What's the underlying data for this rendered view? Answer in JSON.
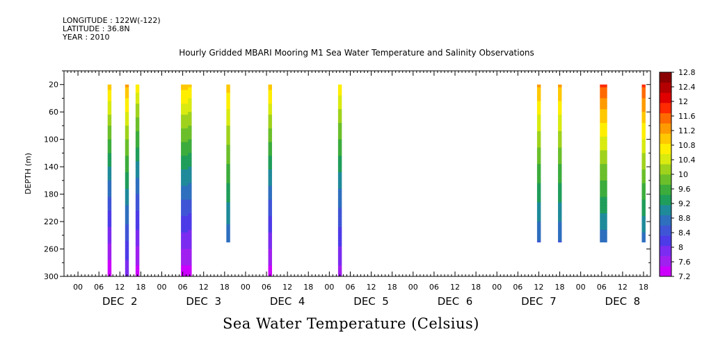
{
  "header": {
    "longitude": "LONGITUDE : 122W(-122)",
    "latitude": "LATITUDE : 36.8N",
    "year": "YEAR : 2010"
  },
  "chart_data": {
    "type": "heatmap",
    "title": "Hourly Gridded MBARI Mooring M1 Sea Water Temperature and Salinity Observations",
    "xlabel": "",
    "ylabel": "DEPTH (m)",
    "colorbar_label": "Sea Water Temperature (Celsius)",
    "x_start": "2010-12-01T20:00",
    "x_end": "2010-12-08T20:00",
    "x_hour_ticks": [
      "00",
      "06",
      "12",
      "18",
      "00",
      "06",
      "12",
      "18",
      "00",
      "06",
      "12",
      "18",
      "00",
      "06",
      "12",
      "18",
      "00",
      "06",
      "12",
      "18",
      "00",
      "06",
      "12",
      "18",
      "00",
      "06",
      "12",
      "18",
      "00",
      "06",
      "12",
      "18"
    ],
    "x_day_labels": [
      "DEC  2",
      "DEC  3",
      "DEC  4",
      "DEC  5",
      "DEC  6",
      "DEC  7",
      "DEC  8"
    ],
    "ylim": [
      300,
      0
    ],
    "y_ticks": [
      20,
      60,
      100,
      140,
      180,
      220,
      260,
      300
    ],
    "color_levels": [
      7.2,
      7.6,
      8,
      8.4,
      8.8,
      9.2,
      9.6,
      10,
      10.4,
      10.8,
      11.2,
      11.6,
      12,
      12.4,
      12.8
    ],
    "colorbar_tick_labels": [
      "12.8",
      "12.4",
      "12",
      "11.6",
      "11.2",
      "10.8",
      "10.4",
      "10",
      "9.6",
      "9.2",
      "8.8",
      "8.4",
      "8",
      "7.6",
      "7.2"
    ],
    "profiles": [
      {
        "time": "2010-12-02T09:00",
        "max_depth": 300,
        "surface_temp": 11.5,
        "bottom_temp": 7.2
      },
      {
        "time": "2010-12-02T14:00",
        "max_depth": 300,
        "surface_temp": 11.6,
        "bottom_temp": 7.8
      },
      {
        "time": "2010-12-02T17:00",
        "max_depth": 300,
        "surface_temp": 11.2,
        "bottom_temp": 7.3
      },
      {
        "time": "2010-12-03T06:00",
        "max_depth": 300,
        "surface_temp": 11.5,
        "bottom_temp": 7.3
      },
      {
        "time": "2010-12-03T07:00",
        "max_depth": 300,
        "surface_temp": 11.5,
        "bottom_temp": 7.3
      },
      {
        "time": "2010-12-03T08:00",
        "max_depth": 300,
        "surface_temp": 11.4,
        "bottom_temp": 7.3
      },
      {
        "time": "2010-12-03T19:00",
        "max_depth": 250,
        "surface_temp": 11.4,
        "bottom_temp": 8.2
      },
      {
        "time": "2010-12-04T07:00",
        "max_depth": 300,
        "surface_temp": 11.5,
        "bottom_temp": 7.3
      },
      {
        "time": "2010-12-05T03:00",
        "max_depth": 300,
        "surface_temp": 11.2,
        "bottom_temp": 7.6
      },
      {
        "time": "2010-12-07T12:00",
        "max_depth": 250,
        "surface_temp": 11.6,
        "bottom_temp": 8.1
      },
      {
        "time": "2010-12-07T18:00",
        "max_depth": 250,
        "surface_temp": 11.6,
        "bottom_temp": 8.1
      },
      {
        "time": "2010-12-08T06:00",
        "max_depth": 250,
        "surface_temp": 12.2,
        "bottom_temp": 8.1
      },
      {
        "time": "2010-12-08T07:00",
        "max_depth": 250,
        "surface_temp": 12.2,
        "bottom_temp": 8.1
      },
      {
        "time": "2010-12-08T18:00",
        "max_depth": 250,
        "surface_temp": 12.2,
        "bottom_temp": 8.2
      }
    ],
    "colors": {
      "palette": [
        "#cc00ff",
        "#a020f0",
        "#7b2cf0",
        "#4d3be8",
        "#3f55d6",
        "#2e6fbe",
        "#1f8a9a",
        "#1f9d5a",
        "#3cac3c",
        "#6bbf2a",
        "#9fd21c",
        "#d8ea10",
        "#ffee00",
        "#ffc800",
        "#ff9a00",
        "#ff6a00",
        "#ff2a00",
        "#e00000",
        "#b40000",
        "#8b0000"
      ]
    }
  }
}
